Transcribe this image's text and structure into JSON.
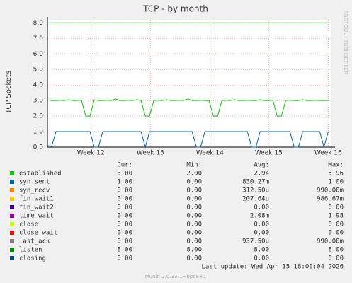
{
  "chart_data": {
    "type": "line",
    "title": "TCP - by month",
    "y_label": "TCP Sockets",
    "side_text": "RRDTOOL / TOBI OETIKER",
    "xlim": [
      0,
      33.3
    ],
    "xticks": [
      {
        "value": 5.1,
        "label": "Week 12"
      },
      {
        "value": 12.1,
        "label": "Week 13"
      },
      {
        "value": 19.1,
        "label": "Week 14"
      },
      {
        "value": 26.0,
        "label": "Week 15"
      },
      {
        "value": 33.0,
        "label": "Week 16"
      }
    ],
    "ylim": [
      0,
      8.2
    ],
    "yticks": [
      {
        "value": 0,
        "label": "0.0"
      },
      {
        "value": 1,
        "label": "1.0"
      },
      {
        "value": 2,
        "label": "2.0"
      },
      {
        "value": 3,
        "label": "3.0"
      },
      {
        "value": 4,
        "label": "4.0"
      },
      {
        "value": 5,
        "label": "5.0"
      },
      {
        "value": 6,
        "label": "6.0"
      },
      {
        "value": 7,
        "label": "7.0"
      },
      {
        "value": 8,
        "label": "8.0"
      }
    ],
    "grid": true,
    "x": [
      0,
      0.5,
      1,
      1.5,
      2,
      2.5,
      3,
      3.5,
      4,
      4.5,
      5,
      5.5,
      6,
      6.5,
      7,
      7.5,
      8,
      8.5,
      9,
      9.5,
      10,
      10.5,
      11,
      11.5,
      12,
      12.5,
      13,
      13.5,
      14,
      14.5,
      15,
      15.5,
      16,
      16.5,
      17,
      17.5,
      18,
      18.5,
      19,
      19.5,
      20,
      20.5,
      21,
      21.5,
      22,
      22.5,
      23,
      23.5,
      24,
      24.5,
      25,
      25.5,
      26,
      26.5,
      27,
      27.5,
      28,
      28.5,
      29,
      29.5,
      30,
      30.5,
      31,
      31.5,
      32,
      32.5,
      33
    ],
    "stat_headers": [
      "Cur:",
      "Min:",
      "Avg:",
      "Max:"
    ],
    "series": [
      {
        "name": "established",
        "color": "#00cc00",
        "stats": [
          "3.00",
          "2.00",
          "2.94",
          "5.96"
        ],
        "values": [
          3.05,
          3.0,
          3.0,
          3.02,
          3.0,
          3.05,
          3.0,
          3.0,
          3.02,
          2.0,
          2.0,
          3.05,
          3.0,
          3.0,
          3.02,
          3.0,
          3.1,
          3.0,
          3.0,
          3.02,
          3.0,
          3.05,
          3.0,
          2.0,
          2.0,
          3.0,
          3.02,
          3.0,
          3.05,
          3.0,
          3.0,
          3.02,
          3.0,
          3.1,
          3.0,
          3.0,
          3.02,
          3.0,
          3.0,
          2.0,
          2.0,
          3.0,
          3.02,
          3.0,
          3.05,
          3.0,
          3.0,
          3.02,
          3.0,
          3.0,
          3.05,
          3.0,
          3.0,
          3.02,
          2.0,
          2.0,
          3.0,
          3.02,
          3.0,
          3.0,
          3.05,
          3.0,
          3.0,
          3.02,
          3.0,
          3.0,
          3.0
        ]
      },
      {
        "name": "syn_sent",
        "color": "#0066b3",
        "stats": [
          "1.00",
          "0.00",
          "830.27m",
          "1.00"
        ],
        "values": [
          0.1,
          0.05,
          1,
          1,
          1,
          1,
          1,
          1,
          1,
          1,
          1,
          0,
          0,
          1,
          1,
          1,
          1,
          1,
          1,
          1,
          1,
          1,
          1,
          0,
          1,
          1,
          1,
          1,
          1,
          1,
          1,
          1,
          1,
          1,
          1,
          0,
          0,
          1,
          1,
          1,
          1,
          1,
          1,
          1,
          1,
          1,
          1,
          1,
          0,
          0,
          1,
          1,
          1,
          1,
          1,
          1,
          1,
          1,
          0,
          0,
          1,
          1,
          1,
          1,
          1,
          0,
          1
        ]
      },
      {
        "name": "syn_recv",
        "color": "#ff8000",
        "stats": [
          "0.00",
          "0.00",
          "312.50u",
          "990.00m"
        ]
      },
      {
        "name": "fin_wait1",
        "color": "#ffcc00",
        "stats": [
          "0.00",
          "0.00",
          "207.64u",
          "986.67m"
        ]
      },
      {
        "name": "fin_wait2",
        "color": "#330099",
        "stats": [
          "0.00",
          "0.00",
          "0.00",
          "0.00"
        ]
      },
      {
        "name": "time_wait",
        "color": "#990099",
        "stats": [
          "0.00",
          "0.00",
          "2.08m",
          "1.98"
        ]
      },
      {
        "name": "close",
        "color": "#ccff00",
        "stats": [
          "0.00",
          "0.00",
          "0.00",
          "0.00"
        ]
      },
      {
        "name": "close_wait",
        "color": "#ff0000",
        "stats": [
          "0.00",
          "0.00",
          "0.00",
          "0.00"
        ]
      },
      {
        "name": "last_ack",
        "color": "#808080",
        "stats": [
          "0.00",
          "0.00",
          "937.50u",
          "990.00m"
        ]
      },
      {
        "name": "listen",
        "color": "#008f00",
        "stats": [
          "8.00",
          "8.00",
          "8.00",
          "8.00"
        ],
        "values": [
          8,
          8,
          8,
          8,
          8,
          8,
          8,
          8,
          8,
          8,
          8,
          8,
          8,
          8,
          8,
          8,
          8,
          8,
          8,
          8,
          8,
          8,
          8,
          8,
          8,
          8,
          8,
          8,
          8,
          8,
          8,
          8,
          8,
          8,
          8,
          8,
          8,
          8,
          8,
          8,
          8,
          8,
          8,
          8,
          8,
          8,
          8,
          8,
          8,
          8,
          8,
          8,
          8,
          8,
          8,
          8,
          8,
          8,
          8,
          8,
          8,
          8,
          8,
          8,
          8,
          8,
          8
        ]
      },
      {
        "name": "closing",
        "color": "#00487d",
        "stats": [
          "0.00",
          "0.00",
          "0.00",
          "0.00"
        ]
      }
    ],
    "last_update": "Last update:  Wed Apr 15 18:00:04 2026",
    "footer": "Munin 2.0.33-1~bpo8+1"
  }
}
